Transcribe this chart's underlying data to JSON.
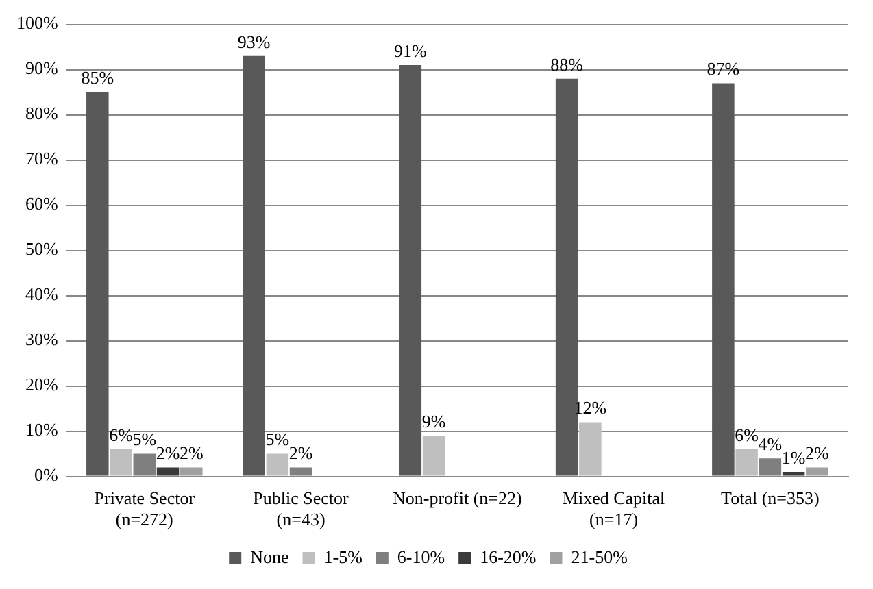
{
  "chart_data": {
    "type": "bar",
    "categories": [
      "Private Sector\n(n=272)",
      "Public Sector\n(n=43)",
      "Non-profit (n=22)",
      "Mixed Capital\n(n=17)",
      "Total (n=353)"
    ],
    "series": [
      {
        "name": "None",
        "color": "#595959",
        "values": [
          85,
          93,
          91,
          88,
          87
        ],
        "value_labels": [
          "85%",
          "93%",
          "91%",
          "88%",
          "87%"
        ]
      },
      {
        "name": "1-5%",
        "color": "#bfbfbf",
        "values": [
          6,
          5,
          9,
          12,
          6
        ],
        "value_labels": [
          "6%",
          "5%",
          "9%",
          "12%",
          "6%"
        ]
      },
      {
        "name": "6-10%",
        "color": "#7f7f7f",
        "values": [
          5,
          2,
          null,
          null,
          4
        ],
        "value_labels": [
          "5%",
          "2%",
          null,
          null,
          "4%"
        ]
      },
      {
        "name": "16-20%",
        "color": "#3a3a3a",
        "values": [
          2,
          null,
          null,
          null,
          1
        ],
        "value_labels": [
          "2%",
          null,
          null,
          null,
          "1%"
        ]
      },
      {
        "name": "21-50%",
        "color": "#a0a0a0",
        "values": [
          2,
          null,
          null,
          null,
          2
        ],
        "value_labels": [
          "2%",
          null,
          null,
          null,
          "2%"
        ]
      }
    ],
    "ylim": [
      0,
      100
    ],
    "yticks": [
      {
        "value": 0,
        "label": "0%"
      },
      {
        "value": 10,
        "label": "10%"
      },
      {
        "value": 20,
        "label": "20%"
      },
      {
        "value": 30,
        "label": "30%"
      },
      {
        "value": 40,
        "label": "40%"
      },
      {
        "value": 50,
        "label": "50%"
      },
      {
        "value": 60,
        "label": "60%"
      },
      {
        "value": 70,
        "label": "70%"
      },
      {
        "value": 80,
        "label": "80%"
      },
      {
        "value": 90,
        "label": "90%"
      },
      {
        "value": 100,
        "label": "100%"
      }
    ],
    "grid": "y",
    "legend": "bottom"
  }
}
